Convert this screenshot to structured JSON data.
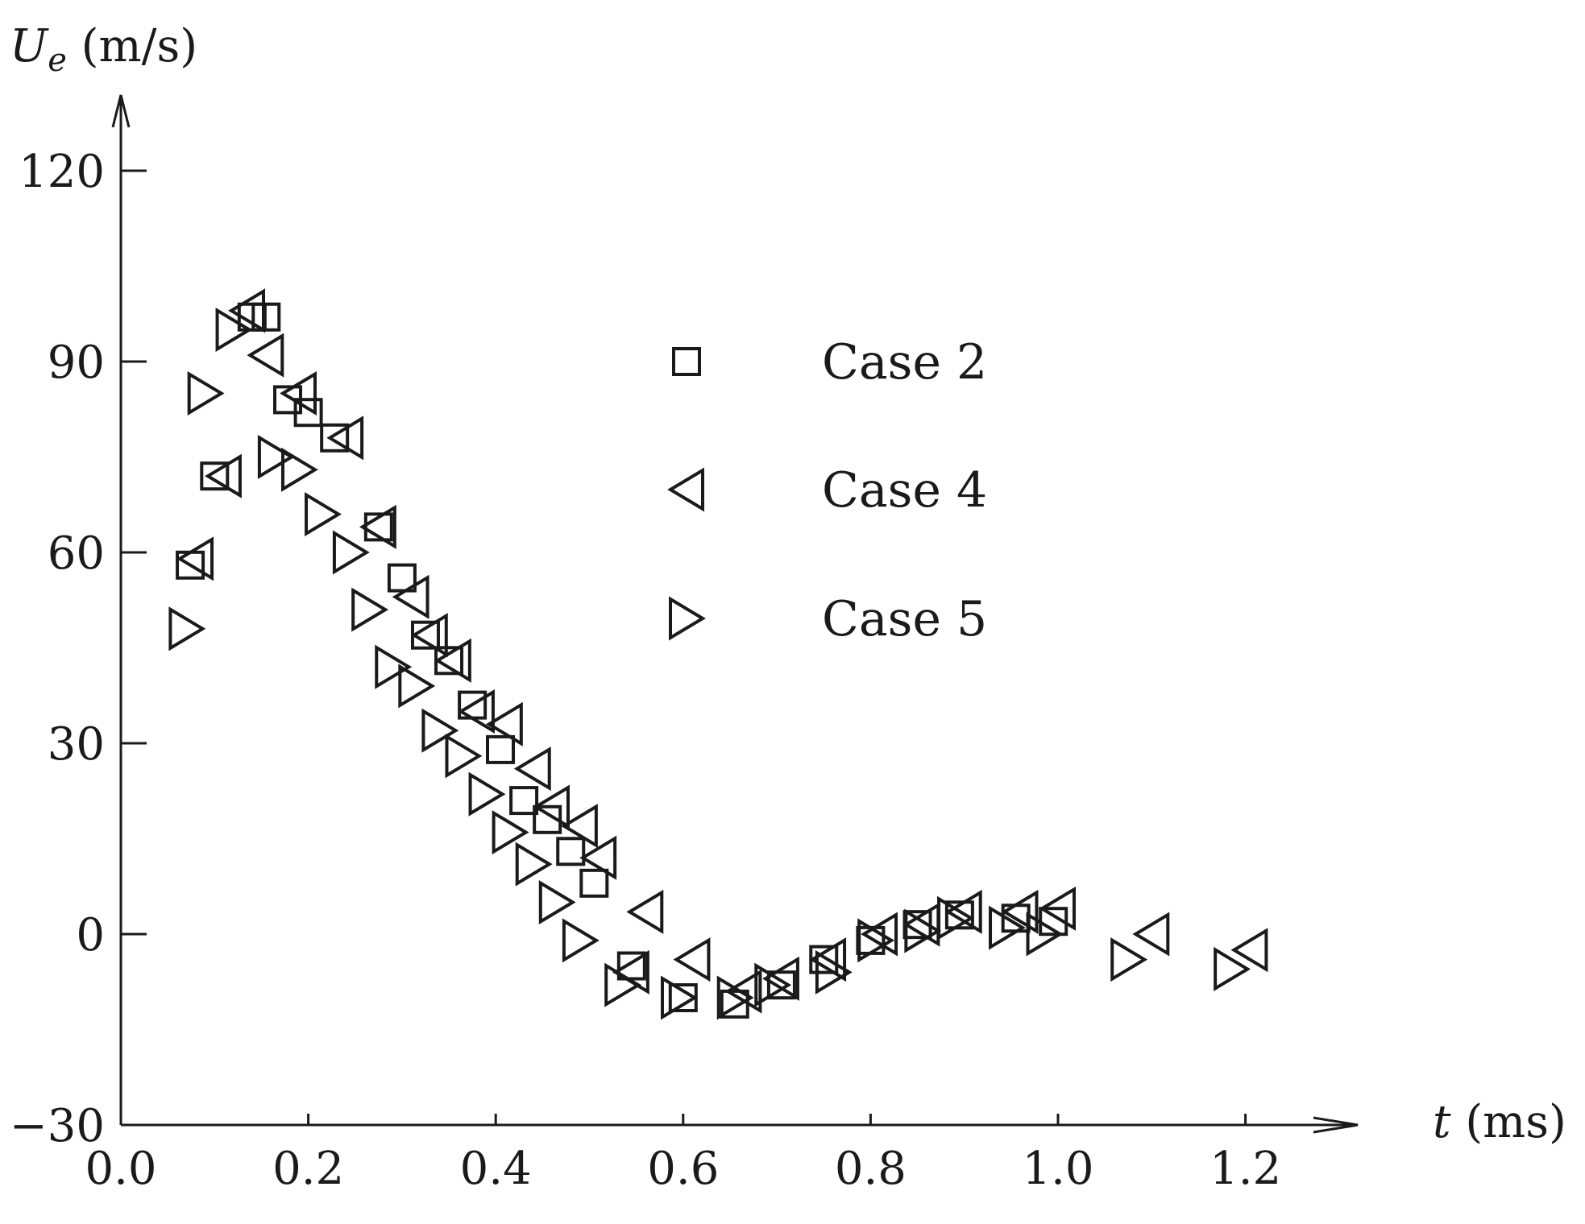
{
  "chart_data": {
    "type": "scatter",
    "xlabel_var": "t",
    "xlabel_unit": " (ms)",
    "ylabel_var": "U",
    "ylabel_sub": "e",
    "ylabel_unit": " (m/s)",
    "xlim": [
      0.0,
      1.2
    ],
    "ylim": [
      -30,
      120
    ],
    "x_ticks": [
      0.0,
      0.2,
      0.4,
      0.6,
      0.8,
      1.0,
      1.2
    ],
    "x_tick_labels": [
      "0.0",
      "0.2",
      "0.4",
      "0.6",
      "0.8",
      "1.0",
      "1.2"
    ],
    "y_ticks": [
      -30,
      0,
      30,
      60,
      90,
      120
    ],
    "y_tick_labels": [
      "−30",
      "0",
      "30",
      "60",
      "90",
      "120"
    ],
    "grid": false,
    "legend_position": "top-center",
    "series": [
      {
        "name": "Case 2",
        "marker": "square",
        "points": [
          [
            0.074,
            58
          ],
          [
            0.1,
            72
          ],
          [
            0.14,
            97
          ],
          [
            0.155,
            97
          ],
          [
            0.178,
            84
          ],
          [
            0.2,
            82
          ],
          [
            0.228,
            78
          ],
          [
            0.275,
            64
          ],
          [
            0.3,
            56
          ],
          [
            0.325,
            47
          ],
          [
            0.35,
            43
          ],
          [
            0.375,
            36
          ],
          [
            0.405,
            29
          ],
          [
            0.43,
            21
          ],
          [
            0.455,
            18
          ],
          [
            0.48,
            13
          ],
          [
            0.505,
            8
          ],
          [
            0.545,
            -5
          ],
          [
            0.6,
            -10
          ],
          [
            0.655,
            -11
          ],
          [
            0.705,
            -8
          ],
          [
            0.75,
            -4
          ],
          [
            0.8,
            -1
          ],
          [
            0.85,
            1.5
          ],
          [
            0.895,
            3
          ],
          [
            0.955,
            2.5
          ],
          [
            0.995,
            2
          ]
        ]
      },
      {
        "name": "Case 4",
        "marker": "triangle-left",
        "points": [
          [
            0.08,
            59
          ],
          [
            0.11,
            72
          ],
          [
            0.135,
            98
          ],
          [
            0.155,
            91
          ],
          [
            0.19,
            85
          ],
          [
            0.24,
            78
          ],
          [
            0.275,
            64
          ],
          [
            0.31,
            53
          ],
          [
            0.33,
            47
          ],
          [
            0.355,
            43
          ],
          [
            0.38,
            35
          ],
          [
            0.41,
            33
          ],
          [
            0.44,
            26
          ],
          [
            0.46,
            20
          ],
          [
            0.49,
            17
          ],
          [
            0.51,
            12
          ],
          [
            0.545,
            -6
          ],
          [
            0.56,
            3.5
          ],
          [
            0.61,
            -4
          ],
          [
            0.665,
            -9
          ],
          [
            0.705,
            -7
          ],
          [
            0.755,
            -4
          ],
          [
            0.81,
            0
          ],
          [
            0.855,
            1.5
          ],
          [
            0.9,
            3.5
          ],
          [
            0.96,
            3.5
          ],
          [
            1.0,
            4
          ],
          [
            1.1,
            0
          ],
          [
            1.205,
            -2.5
          ]
        ]
      },
      {
        "name": "Case 5",
        "marker": "triangle-right",
        "points": [
          [
            0.07,
            48
          ],
          [
            0.09,
            85
          ],
          [
            0.12,
            95
          ],
          [
            0.165,
            75
          ],
          [
            0.19,
            73
          ],
          [
            0.215,
            66
          ],
          [
            0.245,
            60
          ],
          [
            0.265,
            51
          ],
          [
            0.29,
            42
          ],
          [
            0.315,
            39
          ],
          [
            0.34,
            32
          ],
          [
            0.365,
            28
          ],
          [
            0.39,
            22
          ],
          [
            0.415,
            16
          ],
          [
            0.44,
            11
          ],
          [
            0.465,
            5
          ],
          [
            0.49,
            -1
          ],
          [
            0.535,
            -8
          ],
          [
            0.595,
            -10
          ],
          [
            0.655,
            -10
          ],
          [
            0.695,
            -8
          ],
          [
            0.76,
            -6
          ],
          [
            0.805,
            -1
          ],
          [
            0.855,
            0.5
          ],
          [
            0.89,
            2.5
          ],
          [
            0.945,
            1
          ],
          [
            0.985,
            0
          ],
          [
            1.075,
            -4
          ],
          [
            1.185,
            -5.5
          ]
        ]
      }
    ]
  }
}
